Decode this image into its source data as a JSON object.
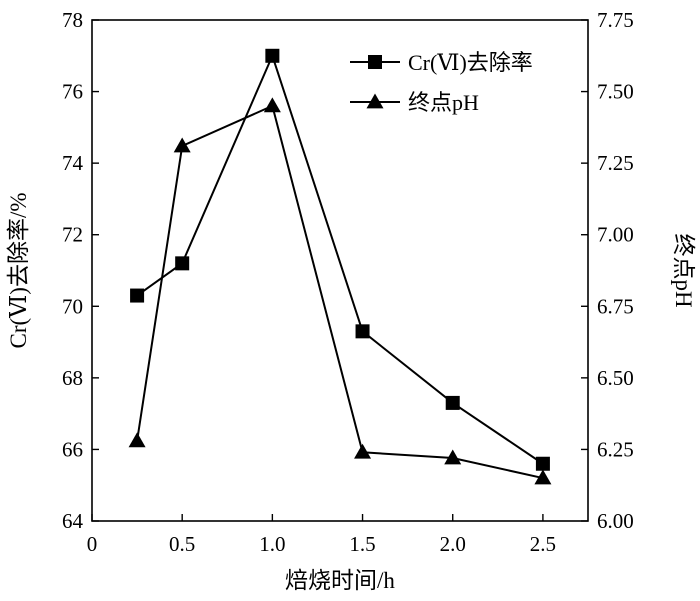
{
  "chart_data": {
    "type": "line",
    "x": [
      0.25,
      0.5,
      1.0,
      1.5,
      2.0,
      2.5
    ],
    "xlabel": "焙烧时间/h",
    "xlim": [
      0,
      2.75
    ],
    "xticks": [
      0,
      0.5,
      1.0,
      1.5,
      2.0,
      2.5
    ],
    "xtick_labels": [
      "0",
      "0.5",
      "1.0",
      "1.5",
      "2.0",
      "2.5"
    ],
    "ylabel_left": "Cr(Ⅵ)去除率/%",
    "ylim_left": [
      64,
      78
    ],
    "yticks_left": [
      "64",
      "66",
      "68",
      "70",
      "72",
      "74",
      "76",
      "78"
    ],
    "ylabel_right": "终点pH",
    "ylim_right": [
      6.0,
      7.75
    ],
    "yticks_right": [
      "6.00",
      "6.25",
      "6.50",
      "6.75",
      "7.00",
      "7.25",
      "7.50",
      "7.75"
    ],
    "legend_position": "top-right",
    "grid": false,
    "series": [
      {
        "name": "Cr(Ⅵ)去除率",
        "axis": "left",
        "marker": "square",
        "values": [
          70.3,
          71.2,
          77.0,
          69.3,
          67.3,
          65.6
        ]
      },
      {
        "name": "终点pH",
        "axis": "right",
        "marker": "triangle",
        "values": [
          6.28,
          7.31,
          7.45,
          6.24,
          6.22,
          6.15
        ]
      }
    ]
  }
}
